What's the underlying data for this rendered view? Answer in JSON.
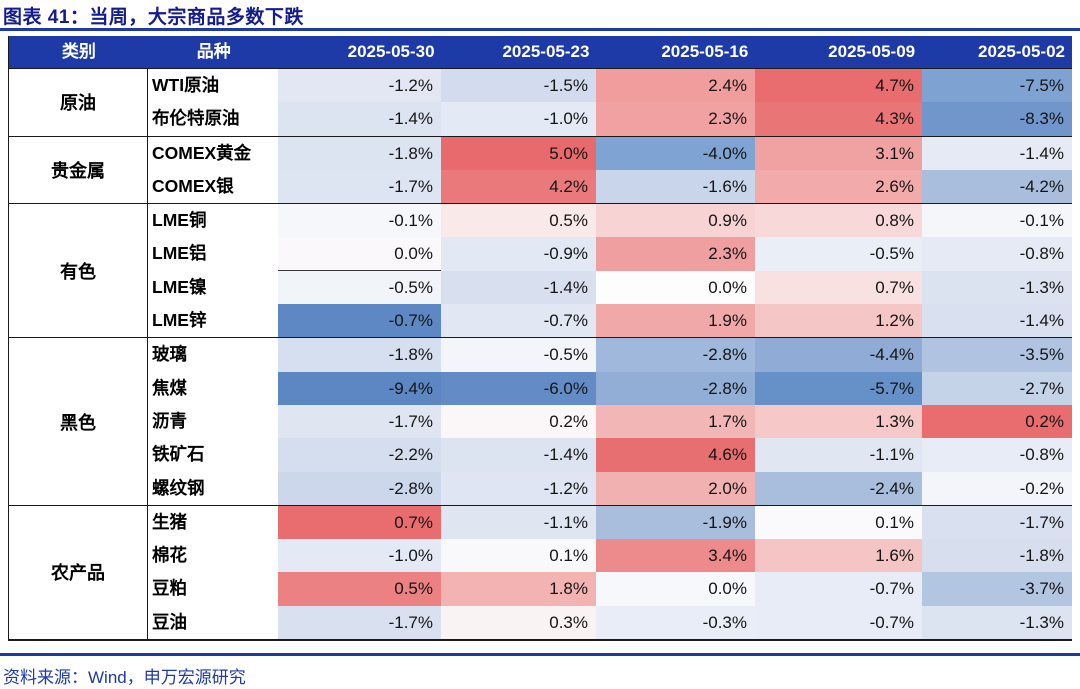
{
  "title": "图表 41：当周，大宗商品多数下跌",
  "source": "资料来源：Wind，申万宏源研究",
  "colors": {
    "header_bg": "#1e3aa6",
    "title_text": "#141b8e",
    "accent_rule": "#1e3aa8",
    "table_border": "#1a1a1a",
    "positive_strong": "#e96d6f",
    "negative_strong": "#5d87c3"
  },
  "table": {
    "headers": [
      "类别",
      "品种",
      "2025-05-30",
      "2025-05-23",
      "2025-05-16",
      "2025-05-09",
      "2025-05-02"
    ],
    "groups": [
      {
        "category": "原油",
        "rows": [
          {
            "name": "WTI原油",
            "cells": [
              {
                "v": "-1.2%",
                "c": "#e2e7f3"
              },
              {
                "v": "-1.5%",
                "c": "#d3dcee"
              },
              {
                "v": "2.4%",
                "c": "#f19d9e"
              },
              {
                "v": "4.7%",
                "c": "#e96d6f"
              },
              {
                "v": "-7.5%",
                "c": "#7ea2d2"
              }
            ]
          },
          {
            "name": "布伦特原油",
            "cells": [
              {
                "v": "-1.4%",
                "c": "#dde4f1"
              },
              {
                "v": "-1.0%",
                "c": "#e4eaf5"
              },
              {
                "v": "2.3%",
                "c": "#f1a1a2"
              },
              {
                "v": "4.3%",
                "c": "#ea7577"
              },
              {
                "v": "-8.3%",
                "c": "#7096cc"
              }
            ]
          }
        ]
      },
      {
        "category": "贵金属",
        "rows": [
          {
            "name": "COMEX黄金",
            "cells": [
              {
                "v": "-1.8%",
                "c": "#dce3f1"
              },
              {
                "v": "5.0%",
                "c": "#e86a6c"
              },
              {
                "v": "-4.0%",
                "c": "#7fa3d2"
              },
              {
                "v": "3.1%",
                "c": "#f0a2a3"
              },
              {
                "v": "-1.4%",
                "c": "#e5eaf5"
              }
            ]
          },
          {
            "name": "COMEX银",
            "cells": [
              {
                "v": "-1.7%",
                "c": "#dee5f2"
              },
              {
                "v": "4.2%",
                "c": "#ea797b"
              },
              {
                "v": "-1.6%",
                "c": "#c8d5ea"
              },
              {
                "v": "2.6%",
                "c": "#f2aaab"
              },
              {
                "v": "-4.2%",
                "c": "#a9bedd"
              }
            ]
          }
        ]
      },
      {
        "category": "有色",
        "rows": [
          {
            "name": "LME铜",
            "cells": [
              {
                "v": "-0.1%",
                "c": "#f6f7fb"
              },
              {
                "v": "0.5%",
                "c": "#fae9e9"
              },
              {
                "v": "0.9%",
                "c": "#f7d3d3"
              },
              {
                "v": "0.8%",
                "c": "#f8d8d8"
              },
              {
                "v": "-0.1%",
                "c": "#f4f6fa"
              }
            ]
          },
          {
            "name": "LME铝",
            "cells": [
              {
                "v": "0.0%",
                "c": "#faf8fb",
                "u": true
              },
              {
                "v": "-0.9%",
                "c": "#e3e9f4"
              },
              {
                "v": "2.3%",
                "c": "#ef9fa0"
              },
              {
                "v": "-0.5%",
                "c": "#eaeef7"
              },
              {
                "v": "-0.8%",
                "c": "#e5eaf5"
              }
            ]
          },
          {
            "name": "LME镍",
            "cells": [
              {
                "v": "-0.5%",
                "c": "#f1f4f9"
              },
              {
                "v": "-1.4%",
                "c": "#d8e0ef"
              },
              {
                "v": "0.0%",
                "c": "#fdfdfe"
              },
              {
                "v": "0.7%",
                "c": "#f9e1e1"
              },
              {
                "v": "-1.3%",
                "c": "#dbe3f0"
              }
            ]
          },
          {
            "name": "LME锌",
            "cells": [
              {
                "v": "-0.7%",
                "c": "#5e88c4"
              },
              {
                "v": "-0.7%",
                "c": "#e1e7f3"
              },
              {
                "v": "1.9%",
                "c": "#f0a8a9"
              },
              {
                "v": "1.2%",
                "c": "#f5c6c6"
              },
              {
                "v": "-1.4%",
                "c": "#d9e1f0"
              }
            ]
          }
        ]
      },
      {
        "category": "黑色",
        "rows": [
          {
            "name": "玻璃",
            "cells": [
              {
                "v": "-1.8%",
                "c": "#d6dfef"
              },
              {
                "v": "-0.5%",
                "c": "#f3f5fa"
              },
              {
                "v": "-2.8%",
                "c": "#a0b8db"
              },
              {
                "v": "-4.4%",
                "c": "#90acd6"
              },
              {
                "v": "-3.5%",
                "c": "#b0c3e0"
              }
            ]
          },
          {
            "name": "焦煤",
            "cells": [
              {
                "v": "-9.4%",
                "c": "#5d87c3"
              },
              {
                "v": "-6.0%",
                "c": "#638bc6"
              },
              {
                "v": "-2.8%",
                "c": "#92aed7"
              },
              {
                "v": "-5.7%",
                "c": "#6690c8"
              },
              {
                "v": "-2.7%",
                "c": "#c5d3e9"
              }
            ]
          },
          {
            "name": "沥青",
            "cells": [
              {
                "v": "-1.7%",
                "c": "#dfe6f2"
              },
              {
                "v": "0.2%",
                "c": "#fbf6f8"
              },
              {
                "v": "1.7%",
                "c": "#f3b6b6"
              },
              {
                "v": "1.3%",
                "c": "#f6c8c8"
              },
              {
                "v": "0.2%",
                "c": "#e96d6e"
              }
            ]
          },
          {
            "name": "铁矿石",
            "cells": [
              {
                "v": "-2.2%",
                "c": "#d5deee"
              },
              {
                "v": "-1.4%",
                "c": "#dde4f1"
              },
              {
                "v": "4.6%",
                "c": "#e86f71"
              },
              {
                "v": "-1.1%",
                "c": "#e0e6f2"
              },
              {
                "v": "-0.8%",
                "c": "#e7ecf6"
              }
            ]
          },
          {
            "name": "螺纹钢",
            "cells": [
              {
                "v": "-2.8%",
                "c": "#ccd7eb"
              },
              {
                "v": "-1.2%",
                "c": "#dfe5f2"
              },
              {
                "v": "2.0%",
                "c": "#f2b1b1"
              },
              {
                "v": "-2.4%",
                "c": "#a9bedd"
              },
              {
                "v": "-0.2%",
                "c": "#f3f5fa"
              }
            ]
          }
        ]
      },
      {
        "category": "农产品",
        "rows": [
          {
            "name": "生猪",
            "cells": [
              {
                "v": "0.7%",
                "c": "#e96d6f"
              },
              {
                "v": "-1.1%",
                "c": "#dfe6f2"
              },
              {
                "v": "-1.9%",
                "c": "#a9bedd"
              },
              {
                "v": "0.1%",
                "c": "#faf9fb"
              },
              {
                "v": "-1.7%",
                "c": "#d9e1f0"
              }
            ]
          },
          {
            "name": "棉花",
            "cells": [
              {
                "v": "-1.0%",
                "c": "#e4eaf5"
              },
              {
                "v": "0.1%",
                "c": "#f9f8fb"
              },
              {
                "v": "3.4%",
                "c": "#ec8a8c"
              },
              {
                "v": "1.6%",
                "c": "#f5c4c4"
              },
              {
                "v": "-1.8%",
                "c": "#d7dfef"
              }
            ]
          },
          {
            "name": "豆粕",
            "cells": [
              {
                "v": "0.5%",
                "c": "#ec8183"
              },
              {
                "v": "1.8%",
                "c": "#f3b3b3"
              },
              {
                "v": "0.0%",
                "c": "#f7f8fb"
              },
              {
                "v": "-0.7%",
                "c": "#e7ecf6"
              },
              {
                "v": "-3.7%",
                "c": "#b2c5e1"
              }
            ]
          },
          {
            "name": "豆油",
            "cells": [
              {
                "v": "-1.7%",
                "c": "#d9e1f0"
              },
              {
                "v": "0.3%",
                "c": "#f9f3f4"
              },
              {
                "v": "-0.3%",
                "c": "#e9edf7"
              },
              {
                "v": "-0.7%",
                "c": "#e7ecf6"
              },
              {
                "v": "-1.3%",
                "c": "#dce3f1"
              }
            ]
          }
        ]
      }
    ]
  },
  "chart_data": {
    "type": "heatmap",
    "title": "图表 41：当周，大宗商品多数下跌",
    "unit": "%",
    "columns": [
      "2025-05-30",
      "2025-05-23",
      "2025-05-16",
      "2025-05-09",
      "2025-05-02"
    ],
    "legend_note": "red = gain, blue = decline",
    "rows": [
      {
        "category": "原油",
        "name": "WTI原油",
        "values": [
          -1.2,
          -1.5,
          2.4,
          4.7,
          -7.5
        ]
      },
      {
        "category": "原油",
        "name": "布伦特原油",
        "values": [
          -1.4,
          -1.0,
          2.3,
          4.3,
          -8.3
        ]
      },
      {
        "category": "贵金属",
        "name": "COMEX黄金",
        "values": [
          -1.8,
          5.0,
          -4.0,
          3.1,
          -1.4
        ]
      },
      {
        "category": "贵金属",
        "name": "COMEX银",
        "values": [
          -1.7,
          4.2,
          -1.6,
          2.6,
          -4.2
        ]
      },
      {
        "category": "有色",
        "name": "LME铜",
        "values": [
          -0.1,
          0.5,
          0.9,
          0.8,
          -0.1
        ]
      },
      {
        "category": "有色",
        "name": "LME铝",
        "values": [
          0.0,
          -0.9,
          2.3,
          -0.5,
          -0.8
        ]
      },
      {
        "category": "有色",
        "name": "LME镍",
        "values": [
          -0.5,
          -1.4,
          0.0,
          0.7,
          -1.3
        ]
      },
      {
        "category": "有色",
        "name": "LME锌",
        "values": [
          -0.7,
          -0.7,
          1.9,
          1.2,
          -1.4
        ]
      },
      {
        "category": "黑色",
        "name": "玻璃",
        "values": [
          -1.8,
          -0.5,
          -2.8,
          -4.4,
          -3.5
        ]
      },
      {
        "category": "黑色",
        "name": "焦煤",
        "values": [
          -9.4,
          -6.0,
          -2.8,
          -5.7,
          -2.7
        ]
      },
      {
        "category": "黑色",
        "name": "沥青",
        "values": [
          -1.7,
          0.2,
          1.7,
          1.3,
          0.2
        ]
      },
      {
        "category": "黑色",
        "name": "铁矿石",
        "values": [
          -2.2,
          -1.4,
          4.6,
          -1.1,
          -0.8
        ]
      },
      {
        "category": "黑色",
        "name": "螺纹钢",
        "values": [
          -2.8,
          -1.2,
          2.0,
          -2.4,
          -0.2
        ]
      },
      {
        "category": "农产品",
        "name": "生猪",
        "values": [
          0.7,
          -1.1,
          -1.9,
          0.1,
          -1.7
        ]
      },
      {
        "category": "农产品",
        "name": "棉花",
        "values": [
          -1.0,
          0.1,
          3.4,
          1.6,
          -1.8
        ]
      },
      {
        "category": "农产品",
        "name": "豆粕",
        "values": [
          0.5,
          1.8,
          0.0,
          -0.7,
          -3.7
        ]
      },
      {
        "category": "农产品",
        "name": "豆油",
        "values": [
          -1.7,
          0.3,
          -0.3,
          -0.7,
          -1.3
        ]
      }
    ]
  }
}
